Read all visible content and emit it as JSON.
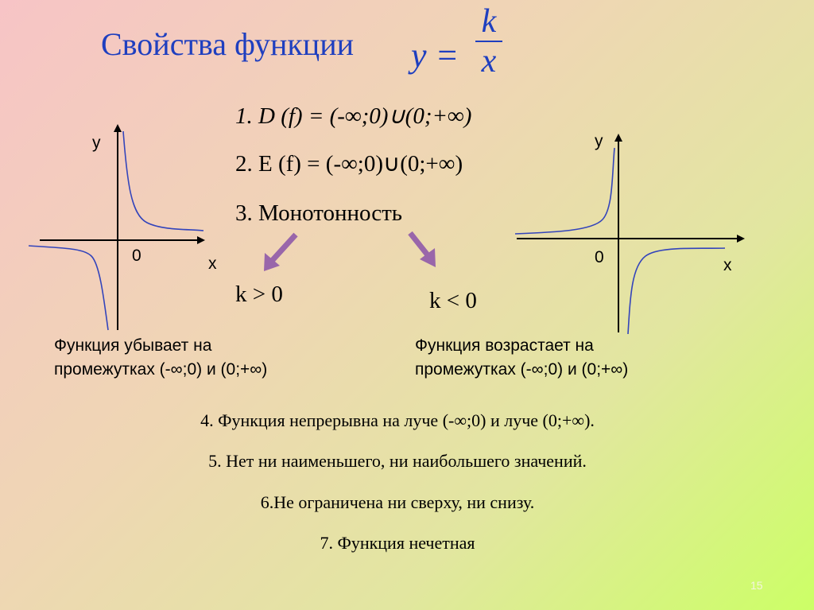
{
  "title": "Свойства функции",
  "formula": {
    "lhs": "y =",
    "numerator": "k",
    "denominator": "x"
  },
  "properties": {
    "p1": "1. D (f) = (-∞;0)∪(0;+∞)",
    "p2": "2. E (f) = (-∞;0)∪(0;+∞)",
    "p3": "3. Монотонность"
  },
  "cases": {
    "positive": {
      "label": "k > 0",
      "text_line1": "Функция убывает на",
      "text_line2": "промежутках (-∞;0) и (0;+∞)"
    },
    "negative": {
      "label": "k < 0",
      "text_line1": "Функция возрастает на",
      "text_line2": "промежутках (-∞;0) и (0;+∞)"
    }
  },
  "graphs": {
    "left": {
      "y_label": "y",
      "x_label": "x",
      "origin_label": "0"
    },
    "right": {
      "y_label": "y",
      "x_label": "x",
      "origin_label": "0"
    },
    "curve_color": "#3344bb",
    "arrow_color": "#9966aa"
  },
  "more_properties": {
    "p4": "4. Функция непрерывна на луче (-∞;0) и луче (0;+∞).",
    "p5": "5. Нет ни наименьшего, ни наибольшего значений.",
    "p6": "6.Не ограничена ни сверху, ни снизу.",
    "p7": "7. Функция нечетная"
  },
  "page_number": "15"
}
